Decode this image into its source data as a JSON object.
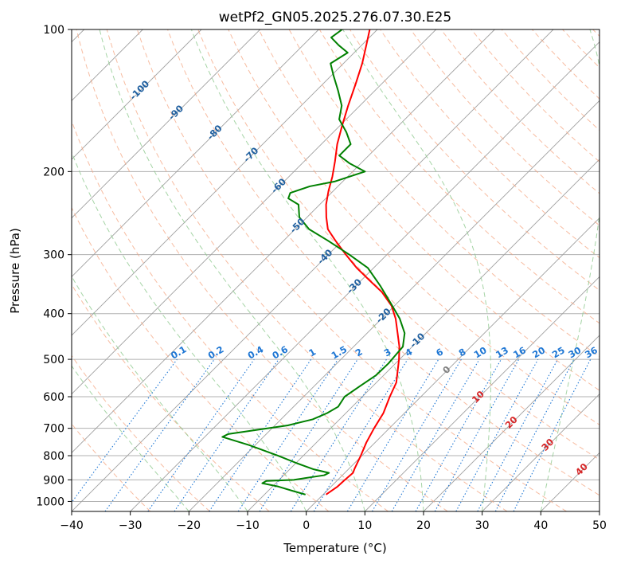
{
  "chart_data": {
    "type": "line",
    "subtype": "skew-T log-P",
    "title": "wetPf2_GN05.2025.276.07.30.E25",
    "xlabel": "Temperature (°C)",
    "ylabel": "Pressure (hPa)",
    "xlim": [
      -40,
      50
    ],
    "ylim": [
      1050,
      100
    ],
    "y_scale": "log",
    "grid": true,
    "x_ticks": [
      -40,
      -30,
      -20,
      -10,
      0,
      10,
      20,
      30,
      40,
      50
    ],
    "x_tick_labels": [
      "−40",
      "−30",
      "−20",
      "−10",
      "0",
      "10",
      "20",
      "30",
      "40",
      "50"
    ],
    "y_ticks": [
      100,
      200,
      300,
      400,
      500,
      600,
      700,
      800,
      900,
      1000
    ],
    "y_tick_labels": [
      "100",
      "200",
      "300",
      "400",
      "500",
      "600",
      "700",
      "800",
      "900",
      "1000"
    ],
    "series": [
      {
        "color": "#ff0000",
        "points": [
          [
            967,
            0.5
          ],
          [
            930,
            1.1
          ],
          [
            900,
            1.2
          ],
          [
            870,
            1.4
          ],
          [
            850,
            0.9
          ],
          [
            800,
            -0.2
          ],
          [
            750,
            -1.5
          ],
          [
            700,
            -2.6
          ],
          [
            650,
            -3.6
          ],
          [
            600,
            -5.3
          ],
          [
            560,
            -6.6
          ],
          [
            530,
            -8.3
          ],
          [
            500,
            -10.1
          ],
          [
            470,
            -12.2
          ],
          [
            440,
            -14.8
          ],
          [
            410,
            -17.6
          ],
          [
            385,
            -20.5
          ],
          [
            360,
            -24.5
          ],
          [
            340,
            -28.6
          ],
          [
            320,
            -32.9
          ],
          [
            300,
            -37.0
          ],
          [
            280,
            -41.2
          ],
          [
            265,
            -44.4
          ],
          [
            250,
            -46.7
          ],
          [
            235,
            -48.9
          ],
          [
            220,
            -50.8
          ],
          [
            205,
            -52.6
          ],
          [
            190,
            -54.8
          ],
          [
            175,
            -57.3
          ],
          [
            160,
            -59.6
          ],
          [
            145,
            -62.0
          ],
          [
            130,
            -64.5
          ],
          [
            118,
            -66.8
          ],
          [
            108,
            -69.2
          ],
          [
            100,
            -71.3
          ]
        ]
      },
      {
        "color": "#008000",
        "points": [
          [
            967,
            -3.0
          ],
          [
            950,
            -5.8
          ],
          [
            930,
            -9.0
          ],
          [
            915,
            -12.3
          ],
          [
            905,
            -12.0
          ],
          [
            900,
            -7.5
          ],
          [
            880,
            -3.1
          ],
          [
            870,
            -2.7
          ],
          [
            855,
            -5.9
          ],
          [
            830,
            -9.8
          ],
          [
            800,
            -14.3
          ],
          [
            760,
            -21.0
          ],
          [
            730,
            -27.0
          ],
          [
            720,
            -26.5
          ],
          [
            690,
            -17.8
          ],
          [
            670,
            -14.6
          ],
          [
            650,
            -13.2
          ],
          [
            630,
            -12.4
          ],
          [
            600,
            -13.0
          ],
          [
            570,
            -12.2
          ],
          [
            540,
            -11.3
          ],
          [
            510,
            -11.2
          ],
          [
            490,
            -11.4
          ],
          [
            470,
            -11.6
          ],
          [
            440,
            -13.6
          ],
          [
            410,
            -16.9
          ],
          [
            380,
            -21.1
          ],
          [
            350,
            -25.7
          ],
          [
            320,
            -31.0
          ],
          [
            300,
            -36.4
          ],
          [
            280,
            -42.5
          ],
          [
            265,
            -47.6
          ],
          [
            250,
            -51.3
          ],
          [
            235,
            -53.6
          ],
          [
            228,
            -56.4
          ],
          [
            222,
            -57.0
          ],
          [
            215,
            -54.8
          ],
          [
            210,
            -51.4
          ],
          [
            200,
            -47.9
          ],
          [
            192,
            -52.0
          ],
          [
            185,
            -55.0
          ],
          [
            175,
            -55.0
          ],
          [
            165,
            -57.8
          ],
          [
            155,
            -61.2
          ],
          [
            145,
            -63.1
          ],
          [
            135,
            -66.2
          ],
          [
            125,
            -69.7
          ],
          [
            118,
            -72.2
          ],
          [
            112,
            -71.1
          ],
          [
            108,
            -73.9
          ],
          [
            104,
            -76.5
          ],
          [
            100,
            -76.0
          ]
        ]
      }
    ],
    "dry_adiabats": [
      -30,
      -20,
      -10,
      0,
      10,
      20,
      30,
      40,
      50,
      60,
      70,
      80,
      90,
      100,
      110,
      120,
      130,
      140,
      150,
      160,
      170,
      180,
      190,
      200,
      210,
      220
    ],
    "moist_adiabats": [
      -20,
      -10,
      0,
      10,
      20,
      30,
      40
    ],
    "isotherm_labels": [
      "-100",
      "-90",
      "-80",
      "-70",
      "-60",
      "-50",
      "-40",
      "-30",
      "-20",
      "-10",
      "0",
      "10",
      "20",
      "30",
      "40"
    ],
    "mixing_ratio_labels": [
      "0.1",
      "0.2",
      "0.4",
      "0.6",
      "1",
      "1.5",
      "2",
      "3",
      "4",
      "6",
      "8",
      "10",
      "13",
      "16",
      "20",
      "25",
      "30",
      "36"
    ],
    "mixing_ratio_values": [
      0.1,
      0.2,
      0.4,
      0.6,
      1,
      1.5,
      2,
      3,
      4,
      6,
      8,
      10,
      13,
      16,
      20,
      25,
      30,
      36
    ],
    "colors": {
      "background": "#ffffff",
      "grid": "#b0b0b0",
      "isotherm": "#a0a0a0",
      "dry_adiabat": "#f4a582",
      "moist_adiabat": "#8fc98f",
      "mixing_ratio": "#1f77d4",
      "isotherm_label_cold": "#1f5f9f",
      "isotherm_label_zero": "#808080",
      "isotherm_label_warm": "#d62728",
      "tan_curve": "#d2b48c"
    }
  }
}
